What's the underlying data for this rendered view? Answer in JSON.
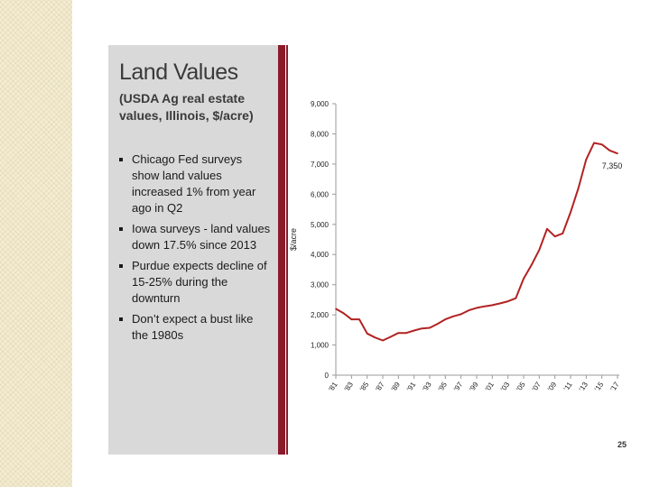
{
  "slide": {
    "title": "Land Values",
    "subtitle": "(USDA Ag real estate values, Illinois, $/acre)",
    "bullets": [
      "Chicago Fed surveys show land values increased 1% from year ago in Q2",
      "Iowa surveys - land values down 17.5% since 2013",
      "Purdue expects decline of 15-25% during the downturn",
      "Don’t expect a bust like the 1980s"
    ],
    "page_number": "25"
  },
  "colors": {
    "line": "#b22222",
    "accent_bar": "#8b1a2b",
    "panel": "#d9d9d9"
  },
  "chart_data": {
    "type": "line",
    "title": "",
    "xlabel": "",
    "ylabel": "$/acre",
    "ylim": [
      0,
      9000
    ],
    "yticks": [
      0,
      1000,
      2000,
      3000,
      4000,
      5000,
      6000,
      7000,
      8000,
      9000
    ],
    "ytick_labels": [
      "0",
      "1,000",
      "2,000",
      "3,000",
      "4,000",
      "5,000",
      "6,000",
      "7,000",
      "8,000",
      "9,000"
    ],
    "x": [
      1981,
      1982,
      1983,
      1984,
      1985,
      1986,
      1987,
      1988,
      1989,
      1990,
      1991,
      1992,
      1993,
      1994,
      1995,
      1996,
      1997,
      1998,
      1999,
      2000,
      2001,
      2002,
      2003,
      2004,
      2005,
      2006,
      2007,
      2008,
      2009,
      2010,
      2011,
      2012,
      2013,
      2014,
      2015,
      2016,
      2017
    ],
    "xtick_years": [
      1981,
      1983,
      1985,
      1987,
      1989,
      1991,
      1993,
      1995,
      1997,
      1999,
      2001,
      2003,
      2005,
      2007,
      2009,
      2011,
      2013,
      2015,
      2017
    ],
    "xtick_labels": [
      "'81",
      "'83",
      "'85",
      "'87",
      "'89",
      "'91",
      "'93",
      "'95",
      "'97",
      "'99",
      "'01",
      "'03",
      "'05",
      "'07",
      "'09",
      "'11",
      "'13",
      "'15",
      "'17"
    ],
    "series": [
      {
        "name": "Illinois ag real estate value",
        "values": [
          2200,
          2050,
          1850,
          1850,
          1380,
          1250,
          1150,
          1270,
          1400,
          1400,
          1480,
          1550,
          1570,
          1700,
          1850,
          1950,
          2020,
          2150,
          2230,
          2280,
          2320,
          2380,
          2450,
          2550,
          3200,
          3650,
          4150,
          4850,
          4600,
          4700,
          5400,
          6200,
          7150,
          7700,
          7650,
          7450,
          7350
        ]
      }
    ],
    "annotation": {
      "year": 2017,
      "value": 7350,
      "text": "7,350"
    },
    "grid": false
  }
}
